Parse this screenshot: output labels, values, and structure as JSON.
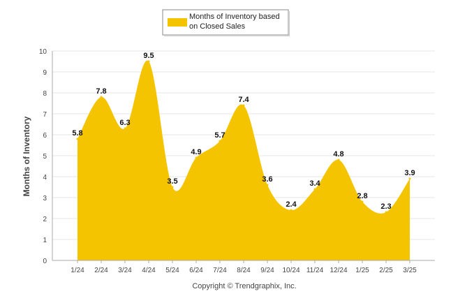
{
  "chart_data": {
    "type": "area",
    "title": "",
    "xlabel": "",
    "ylabel": "Months of Inventory",
    "categories": [
      "1/24",
      "2/24",
      "3/24",
      "4/24",
      "5/24",
      "6/24",
      "7/24",
      "8/24",
      "9/24",
      "10/24",
      "11/24",
      "12/24",
      "1/25",
      "2/25",
      "3/25"
    ],
    "series": [
      {
        "name": "Months of Inventory based on Closed Sales",
        "values": [
          5.8,
          7.8,
          6.3,
          9.5,
          3.5,
          4.9,
          5.7,
          7.4,
          3.6,
          2.4,
          3.4,
          4.8,
          2.8,
          2.3,
          3.9
        ],
        "color": "#F5C400"
      }
    ],
    "data_labels": [
      "5.8",
      "7.8",
      "6.3",
      "9.5",
      "3.5",
      "4.9",
      "5.7",
      "7.4",
      "3.6",
      "2.4",
      "3.4",
      "4.8",
      "2.8",
      "2.3",
      "3.9"
    ],
    "ylim": [
      0,
      10
    ],
    "y_ticks": [
      "0",
      "1",
      "2",
      "3",
      "4",
      "5",
      "6",
      "7",
      "8",
      "9",
      "10"
    ],
    "grid": true,
    "legend_position": "top-center",
    "smooth": true
  },
  "legend": {
    "line1": "Months of Inventory based",
    "line2": "on Closed Sales"
  },
  "footer": {
    "copyright": "Copyright © Trendgraphix, Inc."
  },
  "colors": {
    "series": "#F5C400",
    "grid": "#e6e6e6",
    "axis": "#aaaaaa",
    "text": "#444444"
  }
}
